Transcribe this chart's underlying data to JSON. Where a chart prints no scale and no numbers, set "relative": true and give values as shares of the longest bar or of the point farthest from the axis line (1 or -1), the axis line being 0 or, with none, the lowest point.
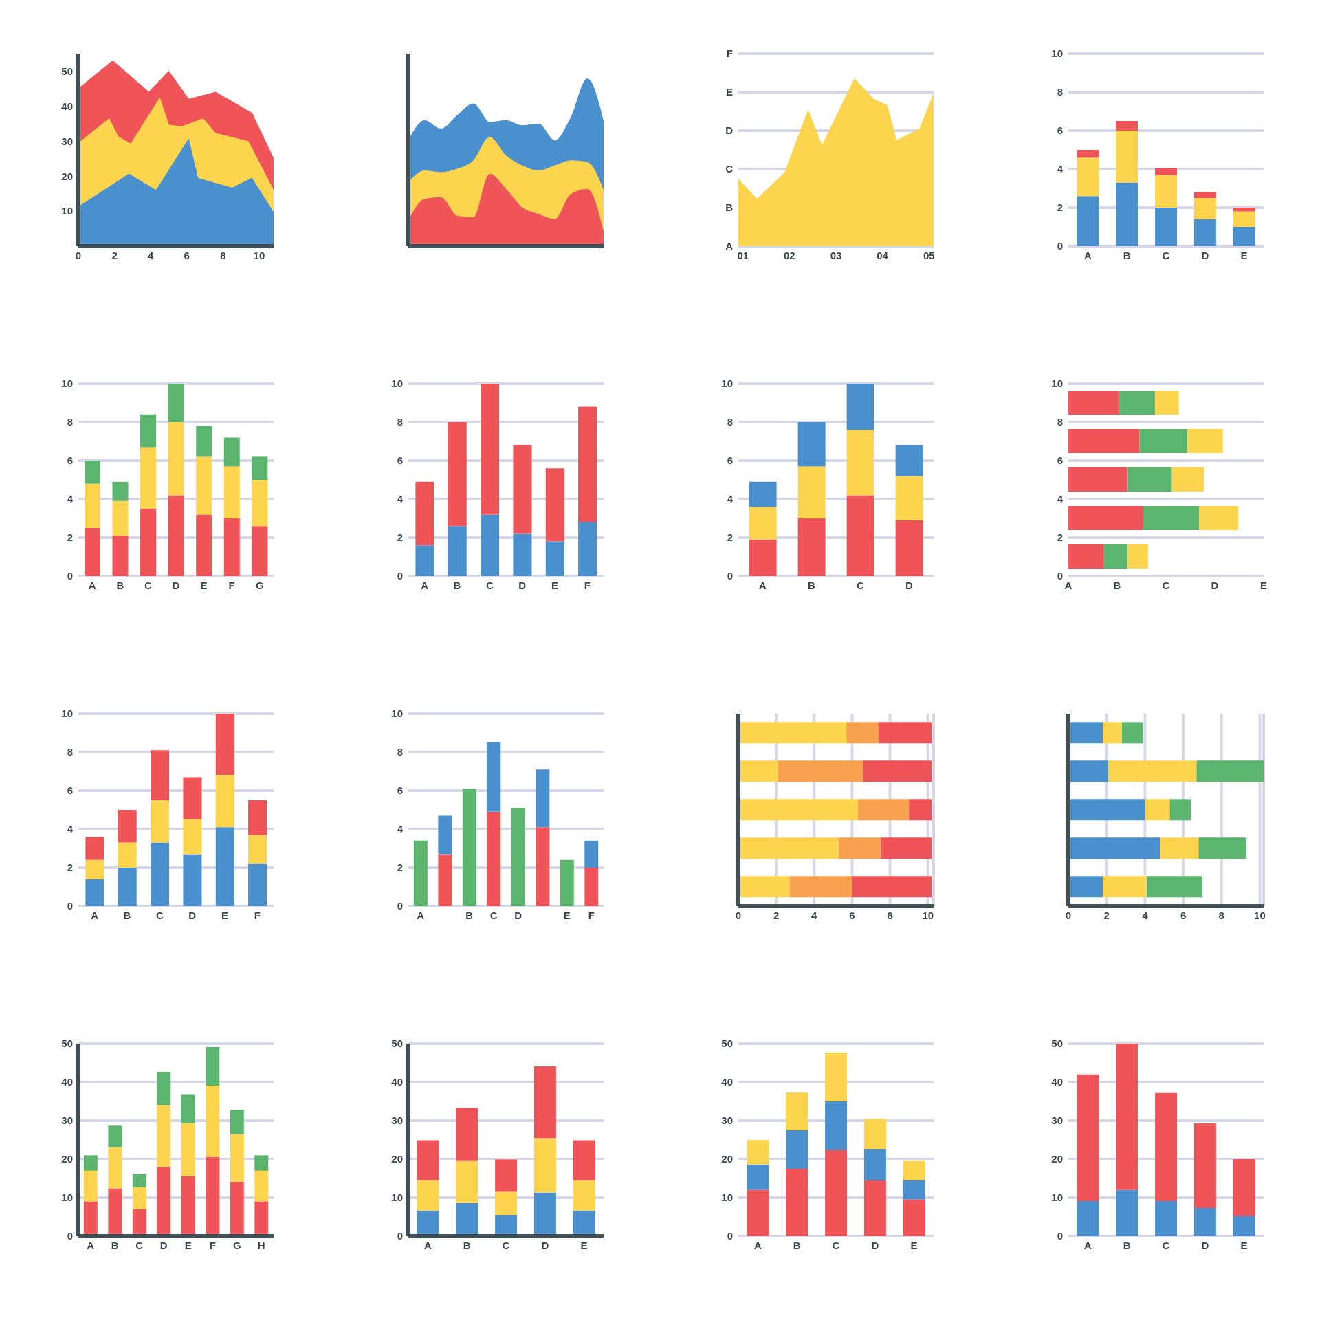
{
  "chart_data": [
    {
      "type": "area",
      "xlim": [
        0,
        10.8
      ],
      "xticks": [
        0,
        2,
        4,
        6,
        8,
        10
      ],
      "ylim": [
        0,
        55
      ],
      "yticks": [
        10,
        20,
        30,
        40,
        50
      ],
      "series": [
        {
          "color": "#ef5458",
          "x": [
            0,
            1.9,
            3.9,
            5,
            6.1,
            7.6,
            9.6,
            10.8
          ],
          "values": [
            45,
            53,
            44,
            50,
            42,
            44,
            38,
            25
          ]
        },
        {
          "color": "#fdd44e",
          "x": [
            0,
            1.7,
            2.2,
            2.9,
            4.5,
            5,
            5.7,
            6.9,
            7.6,
            9.4,
            10.8
          ],
          "values": [
            29.4,
            36.4,
            31.3,
            29.2,
            42.3,
            34.6,
            34.1,
            36.4,
            32.2,
            29.9,
            15.9
          ]
        },
        {
          "color": "#4a90cf",
          "x": [
            0,
            2.8,
            4.3,
            6.1,
            6.6,
            8.5,
            9.6,
            10.8
          ],
          "values": [
            11.2,
            20.6,
            15.9,
            30.6,
            19.4,
            16.6,
            19.4,
            9.6
          ]
        }
      ]
    },
    {
      "type": "area",
      "relative": true,
      "tick_labels": false,
      "categories": [
        null,
        null,
        null,
        null,
        null,
        null,
        null,
        null,
        null,
        null,
        null,
        null,
        null
      ],
      "series": [
        {
          "color": "#4a90cf",
          "values": [
            0.63,
            0.75,
            0.7,
            0.78,
            0.85,
            0.74,
            0.75,
            0.72,
            0.73,
            0.63,
            0.77,
            1,
            0.74
          ]
        },
        {
          "color": "#fdd44e",
          "values": [
            0.38,
            0.45,
            0.44,
            0.46,
            0.51,
            0.65,
            0.54,
            0.48,
            0.45,
            0.48,
            0.51,
            0.5,
            0.33
          ]
        },
        {
          "color": "#ef5458",
          "values": [
            0.15,
            0.28,
            0.29,
            0.18,
            0.17,
            0.43,
            0.34,
            0.23,
            0.19,
            0.16,
            0.31,
            0.34,
            0.08
          ]
        }
      ]
    },
    {
      "type": "area",
      "grid": "y",
      "relative": true,
      "annotations": [
        "A",
        "B",
        "C",
        "D",
        "E",
        "F"
      ],
      "x": [
        0.9,
        1.3,
        1.9,
        2.4,
        2.7,
        3.4,
        3.8,
        4.1,
        4.3,
        4.8,
        5.1
      ],
      "values": [
        0.4,
        0.28,
        0.44,
        0.81,
        0.6,
        1,
        0.88,
        0.84,
        0.63,
        0.7,
        0.91
      ],
      "color": "#fdd44e",
      "xlim": [
        0.9,
        5.1
      ],
      "xticks": [
        {
          "value": 1,
          "label": "01"
        },
        {
          "value": 2,
          "label": "02"
        },
        {
          "value": 3,
          "label": "03"
        },
        {
          "value": 4,
          "label": "04"
        },
        {
          "value": 5,
          "label": "05"
        }
      ]
    },
    {
      "type": "bar",
      "stacked": true,
      "grid": "y",
      "categories": [
        "A",
        "B",
        "C",
        "D",
        "E"
      ],
      "ylim": [
        0,
        10
      ],
      "yticks": [
        0,
        2,
        4,
        6,
        8,
        10
      ],
      "series": [
        {
          "color": "#4a90cf",
          "values": [
            2.6,
            3.3,
            2,
            1.4,
            1
          ]
        },
        {
          "color": "#fdd44e",
          "values": [
            2,
            2.7,
            1.7,
            1.1,
            0.8
          ]
        },
        {
          "color": "#ef5458",
          "values": [
            0.4,
            0.5,
            0.35,
            0.3,
            0.2
          ]
        }
      ]
    },
    {
      "type": "bar",
      "stacked": true,
      "grid": "y",
      "categories": [
        "A",
        "B",
        "C",
        "D",
        "E",
        "F",
        "G"
      ],
      "ylim": [
        0,
        10
      ],
      "yticks": [
        0,
        2,
        4,
        6,
        8,
        10
      ],
      "series": [
        {
          "color": "#ef5458",
          "values": [
            2.5,
            2.1,
            3.5,
            4.2,
            3.2,
            3,
            2.6
          ]
        },
        {
          "color": "#fdd44e",
          "values": [
            2.3,
            1.8,
            3.2,
            3.8,
            3,
            2.7,
            2.4
          ]
        },
        {
          "color": "#5cb56f",
          "values": [
            1.2,
            1,
            1.7,
            2,
            1.6,
            1.5,
            1.2
          ]
        }
      ]
    },
    {
      "type": "bar",
      "stacked": true,
      "grid": "y",
      "categories": [
        "A",
        "B",
        "C",
        "D",
        "E",
        "F"
      ],
      "ylim": [
        0,
        10
      ],
      "yticks": [
        0,
        2,
        4,
        6,
        8,
        10
      ],
      "series": [
        {
          "color": "#4a90cf",
          "values": [
            1.6,
            2.6,
            3.2,
            2.2,
            1.8,
            2.8
          ]
        },
        {
          "color": "#ef5458",
          "values": [
            3.3,
            5.4,
            6.8,
            4.6,
            3.8,
            6
          ]
        }
      ]
    },
    {
      "type": "bar",
      "stacked": true,
      "grid": "y",
      "categories": [
        "A",
        "B",
        "C",
        "D"
      ],
      "ylim": [
        0,
        10
      ],
      "yticks": [
        0,
        2,
        4,
        6,
        8,
        10
      ],
      "series": [
        {
          "color": "#ef5458",
          "values": [
            1.9,
            3,
            4.2,
            2.9
          ]
        },
        {
          "color": "#fdd44e",
          "values": [
            1.7,
            2.7,
            3.4,
            2.3
          ]
        },
        {
          "color": "#4a90cf",
          "values": [
            1.3,
            2.3,
            2.4,
            1.6
          ]
        }
      ]
    },
    {
      "type": "bar",
      "stacked": true,
      "orientation": "horizontal",
      "grid": "y",
      "relative": true,
      "annotations": [
        "A",
        "B",
        "C",
        "D",
        "E"
      ],
      "x": [
        9,
        7,
        5,
        3,
        1
      ],
      "ylim": [
        0,
        10
      ],
      "yticks": [
        0,
        2,
        4,
        6,
        8,
        10
      ],
      "series": [
        {
          "color": "#ef5458",
          "values": [
            0.3,
            0.42,
            0.35,
            0.44,
            0.21
          ]
        },
        {
          "color": "#5cb56f",
          "values": [
            0.21,
            0.28,
            0.26,
            0.33,
            0.14
          ]
        },
        {
          "color": "#fdd44e",
          "values": [
            0.14,
            0.21,
            0.19,
            0.23,
            0.12
          ]
        }
      ]
    },
    {
      "type": "bar",
      "stacked": true,
      "grid": "y",
      "categories": [
        "A",
        "B",
        "C",
        "D",
        "E",
        "F"
      ],
      "ylim": [
        0,
        10
      ],
      "yticks": [
        0,
        2,
        4,
        6,
        8,
        10
      ],
      "series": [
        {
          "color": "#4a90cf",
          "values": [
            1.4,
            2,
            3.3,
            2.7,
            4.1,
            2.2
          ]
        },
        {
          "color": "#fdd44e",
          "values": [
            1,
            1.3,
            2.2,
            1.8,
            2.7,
            1.5
          ]
        },
        {
          "color": "#ef5458",
          "values": [
            1.2,
            1.7,
            2.6,
            2.2,
            3.2,
            1.8
          ]
        }
      ]
    },
    {
      "type": "bar",
      "stacked": true,
      "grid": "y",
      "categories": [
        "A",
        null,
        "B",
        "C",
        "D",
        null,
        "E",
        "F"
      ],
      "ylim": [
        0,
        10
      ],
      "yticks": [
        0,
        2,
        4,
        6,
        8,
        10
      ],
      "series": [
        {
          "color": "#5cb56f",
          "values": [
            3.4,
            null,
            6.1,
            null,
            5.1,
            null,
            2.4,
            null
          ]
        },
        {
          "color": "#ef5458",
          "values": [
            null,
            2.7,
            null,
            4.9,
            null,
            4.1,
            null,
            2
          ]
        },
        {
          "color": "#4a90cf",
          "values": [
            null,
            2,
            null,
            3.6,
            null,
            3,
            null,
            1.4
          ]
        }
      ]
    },
    {
      "type": "bar",
      "stacked": true,
      "orientation": "horizontal",
      "grid": "x",
      "tick_labels": "x",
      "categories": [
        null,
        null,
        null,
        null,
        null
      ],
      "xlim": [
        0,
        10.3
      ],
      "xticks": [
        0,
        2,
        4,
        6,
        8,
        10
      ],
      "series": [
        {
          "color": "#fdd44e",
          "values": [
            5.7,
            2.1,
            6.3,
            5.3,
            2.7
          ]
        },
        {
          "color": "#f7a04e",
          "values": [
            1.7,
            4.5,
            2.7,
            2.2,
            3.3
          ]
        },
        {
          "color": "#ef5458",
          "values": [
            2.8,
            3.6,
            1.2,
            2.7,
            4.2
          ]
        }
      ]
    },
    {
      "type": "bar",
      "stacked": true,
      "orientation": "horizontal",
      "grid": "x",
      "tick_labels": "x",
      "categories": [
        null,
        null,
        null,
        null,
        null
      ],
      "xlim": [
        0,
        10.2
      ],
      "xticks": [
        0,
        2,
        4,
        6,
        8,
        10
      ],
      "series": [
        {
          "color": "#4a90cf",
          "values": [
            1.8,
            2.1,
            4,
            4.8,
            1.8
          ]
        },
        {
          "color": "#fdd44e",
          "values": [
            1,
            4.6,
            1.3,
            2,
            2.3
          ]
        },
        {
          "color": "#5cb56f",
          "values": [
            1.1,
            3.5,
            1.1,
            2.5,
            2.9
          ]
        }
      ]
    },
    {
      "type": "bar",
      "stacked": true,
      "grid": "y",
      "categories": [
        "A",
        "B",
        "C",
        "D",
        "E",
        "F",
        "G",
        "H"
      ],
      "ylim": [
        0,
        50
      ],
      "yticks": [
        0,
        10,
        20,
        30,
        40,
        50
      ],
      "series": [
        {
          "color": "#ef5458",
          "values": [
            9,
            12.4,
            7,
            18,
            15.6,
            20.6,
            14,
            9
          ]
        },
        {
          "color": "#fdd44e",
          "values": [
            8,
            10.7,
            5.7,
            16,
            13.8,
            18.5,
            12.5,
            8
          ]
        },
        {
          "color": "#5cb56f",
          "values": [
            4,
            5.6,
            3.4,
            8.6,
            7.3,
            10,
            6.3,
            4
          ]
        }
      ]
    },
    {
      "type": "bar",
      "stacked": true,
      "grid": "y",
      "categories": [
        "A",
        "B",
        "C",
        "D",
        "E"
      ],
      "ylim": [
        0,
        50
      ],
      "yticks": [
        0,
        10,
        20,
        30,
        40,
        50
      ],
      "series": [
        {
          "color": "#4a90cf",
          "values": [
            6.6,
            8.6,
            5.4,
            11.3,
            6.6
          ]
        },
        {
          "color": "#fdd44e",
          "values": [
            7.9,
            10.9,
            6.1,
            14,
            7.9
          ]
        },
        {
          "color": "#ef5458",
          "values": [
            10.4,
            13.8,
            8.4,
            18.8,
            10.4
          ]
        }
      ]
    },
    {
      "type": "bar",
      "stacked": true,
      "grid": "y",
      "categories": [
        "A",
        "B",
        "C",
        "D",
        "E"
      ],
      "ylim": [
        0,
        50
      ],
      "yticks": [
        0,
        10,
        20,
        30,
        40,
        50
      ],
      "series": [
        {
          "color": "#ef5458",
          "values": [
            12,
            17.5,
            22.3,
            14.5,
            9.5
          ]
        },
        {
          "color": "#4a90cf",
          "values": [
            6.6,
            10,
            12.7,
            8,
            5
          ]
        },
        {
          "color": "#fdd44e",
          "values": [
            6.4,
            9.8,
            12.7,
            8,
            5
          ]
        }
      ]
    },
    {
      "type": "bar",
      "stacked": true,
      "grid": "y",
      "categories": [
        "A",
        "B",
        "C",
        "D",
        "E"
      ],
      "ylim": [
        0,
        50
      ],
      "yticks": [
        0,
        10,
        20,
        30,
        40,
        50
      ],
      "series": [
        {
          "color": "#4a90cf",
          "values": [
            9.1,
            12,
            9.1,
            7.3,
            5.2
          ]
        },
        {
          "color": "#ef5458",
          "values": [
            32.9,
            38,
            28.1,
            22,
            14.8
          ]
        }
      ]
    }
  ]
}
